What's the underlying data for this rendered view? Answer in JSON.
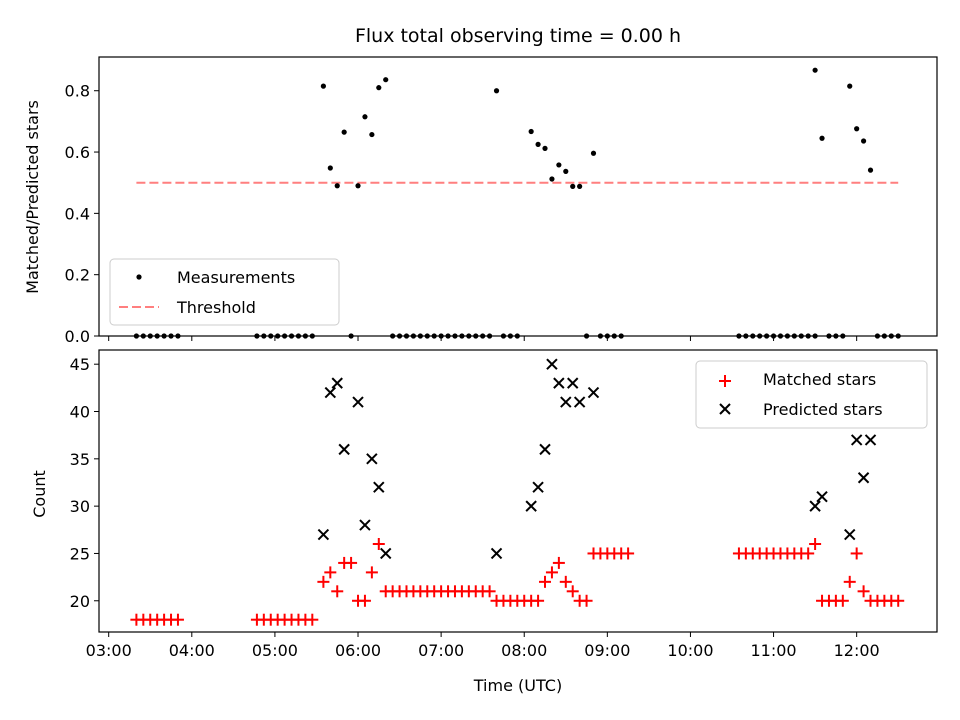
{
  "chart_data": [
    {
      "type": "scatter",
      "title": "Flux total observing time = 0.00 h",
      "xlabel": "",
      "ylabel": "Matched/Predicted stars",
      "xlim": [
        "02:53",
        "12:58"
      ],
      "ylim": [
        0,
        0.91
      ],
      "yticks": [
        "0.0",
        "0.2",
        "0.4",
        "0.6",
        "0.8"
      ],
      "legend": {
        "position": "lower-left",
        "entries": [
          "Measurements",
          "Threshold"
        ]
      },
      "series": [
        {
          "name": "Measurements",
          "marker": "dot",
          "color": "#000000",
          "points": [
            [
              "03:20",
              0
            ],
            [
              "03:25",
              0
            ],
            [
              "03:30",
              0
            ],
            [
              "03:35",
              0
            ],
            [
              "03:40",
              0
            ],
            [
              "03:45",
              0
            ],
            [
              "03:50",
              0
            ],
            [
              "04:47",
              0
            ],
            [
              "04:52",
              0
            ],
            [
              "04:57",
              0
            ],
            [
              "05:02",
              0
            ],
            [
              "05:07",
              0
            ],
            [
              "05:12",
              0
            ],
            [
              "05:17",
              0
            ],
            [
              "05:22",
              0
            ],
            [
              "05:27",
              0
            ],
            [
              "05:35",
              0.815
            ],
            [
              "05:40",
              0.548
            ],
            [
              "05:45",
              0.49
            ],
            [
              "05:50",
              0.665
            ],
            [
              "05:55",
              0
            ],
            [
              "06:00",
              0.49
            ],
            [
              "06:05",
              0.715
            ],
            [
              "06:10",
              0.657
            ],
            [
              "06:15",
              0.81
            ],
            [
              "06:20",
              0.836
            ],
            [
              "06:25",
              0
            ],
            [
              "06:30",
              0
            ],
            [
              "06:35",
              0
            ],
            [
              "06:40",
              0
            ],
            [
              "06:45",
              0
            ],
            [
              "06:50",
              0
            ],
            [
              "06:55",
              0
            ],
            [
              "07:00",
              0
            ],
            [
              "07:05",
              0
            ],
            [
              "07:10",
              0
            ],
            [
              "07:15",
              0
            ],
            [
              "07:20",
              0
            ],
            [
              "07:25",
              0
            ],
            [
              "07:30",
              0
            ],
            [
              "07:35",
              0
            ],
            [
              "07:40",
              0.8
            ],
            [
              "07:45",
              0
            ],
            [
              "07:50",
              0
            ],
            [
              "07:55",
              0
            ],
            [
              "08:05",
              0.667
            ],
            [
              "08:10",
              0.625
            ],
            [
              "08:15",
              0.612
            ],
            [
              "08:20",
              0.512
            ],
            [
              "08:25",
              0.558
            ],
            [
              "08:30",
              0.537
            ],
            [
              "08:35",
              0.488
            ],
            [
              "08:40",
              0.488
            ],
            [
              "08:45",
              0
            ],
            [
              "08:50",
              0.596
            ],
            [
              "08:55",
              0
            ],
            [
              "09:00",
              0
            ],
            [
              "09:05",
              0
            ],
            [
              "09:10",
              0
            ],
            [
              "10:35",
              0
            ],
            [
              "10:40",
              0
            ],
            [
              "10:45",
              0
            ],
            [
              "10:50",
              0
            ],
            [
              "10:55",
              0
            ],
            [
              "11:00",
              0
            ],
            [
              "11:05",
              0
            ],
            [
              "11:10",
              0
            ],
            [
              "11:15",
              0
            ],
            [
              "11:20",
              0
            ],
            [
              "11:25",
              0
            ],
            [
              "11:30",
              0
            ],
            [
              "11:30",
              0.867
            ],
            [
              "11:35",
              0.645
            ],
            [
              "11:40",
              0
            ],
            [
              "11:45",
              0
            ],
            [
              "11:50",
              0
            ],
            [
              "11:55",
              0.815
            ],
            [
              "12:00",
              0.676
            ],
            [
              "12:05",
              0.636
            ],
            [
              "12:10",
              0.541
            ],
            [
              "12:15",
              0
            ],
            [
              "12:20",
              0
            ],
            [
              "12:25",
              0
            ],
            [
              "12:30",
              0
            ]
          ]
        },
        {
          "name": "Threshold",
          "style": "dashed",
          "color": "#ff7f7f",
          "points": [
            [
              "03:20",
              0.5
            ],
            [
              "12:30",
              0.5
            ]
          ]
        }
      ]
    },
    {
      "type": "scatter",
      "title": "",
      "xlabel": "Time (UTC)",
      "ylabel": "Count",
      "xlim": [
        "02:53",
        "12:58"
      ],
      "ylim": [
        16.7,
        46.5
      ],
      "xticks": [
        "03:00",
        "04:00",
        "05:00",
        "06:00",
        "07:00",
        "08:00",
        "09:00",
        "10:00",
        "11:00",
        "12:00"
      ],
      "yticks": [
        "20",
        "25",
        "30",
        "35",
        "40",
        "45"
      ],
      "legend": {
        "position": "top-right",
        "entries": [
          "Matched stars",
          "Predicted stars"
        ]
      },
      "series": [
        {
          "name": "Matched stars",
          "marker": "plus",
          "color": "#ff0000",
          "points": [
            [
              "03:20",
              18
            ],
            [
              "03:25",
              18
            ],
            [
              "03:30",
              18
            ],
            [
              "03:35",
              18
            ],
            [
              "03:40",
              18
            ],
            [
              "03:45",
              18
            ],
            [
              "03:50",
              18
            ],
            [
              "04:47",
              18
            ],
            [
              "04:52",
              18
            ],
            [
              "04:57",
              18
            ],
            [
              "05:02",
              18
            ],
            [
              "05:07",
              18
            ],
            [
              "05:12",
              18
            ],
            [
              "05:17",
              18
            ],
            [
              "05:22",
              18
            ],
            [
              "05:27",
              18
            ],
            [
              "05:35",
              22
            ],
            [
              "05:40",
              23
            ],
            [
              "05:45",
              21
            ],
            [
              "05:50",
              24
            ],
            [
              "05:55",
              24
            ],
            [
              "06:00",
              20
            ],
            [
              "06:05",
              20
            ],
            [
              "06:10",
              23
            ],
            [
              "06:15",
              26
            ],
            [
              "06:20",
              21
            ],
            [
              "06:25",
              21
            ],
            [
              "06:30",
              21
            ],
            [
              "06:35",
              21
            ],
            [
              "06:40",
              21
            ],
            [
              "06:45",
              21
            ],
            [
              "06:50",
              21
            ],
            [
              "06:55",
              21
            ],
            [
              "07:00",
              21
            ],
            [
              "07:05",
              21
            ],
            [
              "07:10",
              21
            ],
            [
              "07:15",
              21
            ],
            [
              "07:20",
              21
            ],
            [
              "07:25",
              21
            ],
            [
              "07:30",
              21
            ],
            [
              "07:35",
              21
            ],
            [
              "07:40",
              20
            ],
            [
              "07:45",
              20
            ],
            [
              "07:50",
              20
            ],
            [
              "07:55",
              20
            ],
            [
              "08:00",
              20
            ],
            [
              "08:05",
              20
            ],
            [
              "08:10",
              20
            ],
            [
              "08:15",
              22
            ],
            [
              "08:20",
              23
            ],
            [
              "08:25",
              24
            ],
            [
              "08:30",
              22
            ],
            [
              "08:35",
              21
            ],
            [
              "08:40",
              20
            ],
            [
              "08:45",
              20
            ],
            [
              "08:50",
              25
            ],
            [
              "08:55",
              25
            ],
            [
              "09:00",
              25
            ],
            [
              "09:05",
              25
            ],
            [
              "09:10",
              25
            ],
            [
              "09:15",
              25
            ],
            [
              "10:35",
              25
            ],
            [
              "10:40",
              25
            ],
            [
              "10:45",
              25
            ],
            [
              "10:50",
              25
            ],
            [
              "10:55",
              25
            ],
            [
              "11:00",
              25
            ],
            [
              "11:05",
              25
            ],
            [
              "11:10",
              25
            ],
            [
              "11:15",
              25
            ],
            [
              "11:20",
              25
            ],
            [
              "11:25",
              25
            ],
            [
              "11:30",
              26
            ],
            [
              "11:35",
              20
            ],
            [
              "11:40",
              20
            ],
            [
              "11:45",
              20
            ],
            [
              "11:50",
              20
            ],
            [
              "11:55",
              22
            ],
            [
              "12:00",
              25
            ],
            [
              "12:05",
              21
            ],
            [
              "12:10",
              20
            ],
            [
              "12:15",
              20
            ],
            [
              "12:20",
              20
            ],
            [
              "12:25",
              20
            ],
            [
              "12:30",
              20
            ]
          ]
        },
        {
          "name": "Predicted stars",
          "marker": "x",
          "color": "#000000",
          "points": [
            [
              "05:35",
              27
            ],
            [
              "05:40",
              42
            ],
            [
              "05:45",
              43
            ],
            [
              "05:50",
              36
            ],
            [
              "06:00",
              41
            ],
            [
              "06:05",
              28
            ],
            [
              "06:10",
              35
            ],
            [
              "06:15",
              32
            ],
            [
              "06:20",
              25
            ],
            [
              "07:40",
              25
            ],
            [
              "08:05",
              30
            ],
            [
              "08:10",
              32
            ],
            [
              "08:15",
              36
            ],
            [
              "08:20",
              45
            ],
            [
              "08:25",
              43
            ],
            [
              "08:30",
              41
            ],
            [
              "08:35",
              43
            ],
            [
              "08:40",
              41
            ],
            [
              "08:50",
              42
            ],
            [
              "11:30",
              30
            ],
            [
              "11:35",
              31
            ],
            [
              "11:55",
              27
            ],
            [
              "12:00",
              37
            ],
            [
              "12:05",
              33
            ],
            [
              "12:10",
              37
            ]
          ]
        }
      ]
    }
  ]
}
